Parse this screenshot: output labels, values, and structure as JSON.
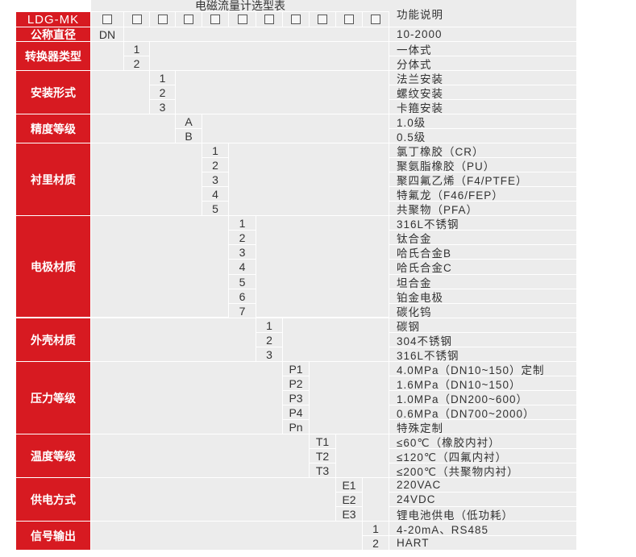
{
  "title": "电磁流量计选型表",
  "function_header": "功能说明",
  "model": "LDG-MK",
  "colors": {
    "label_bg": "#d71a21",
    "cell_bg": "#ececec",
    "grid": "#ffffff"
  },
  "placeholder_count": 11,
  "groups": [
    {
      "label": "公称直径",
      "rows": [
        {
          "code": "DN",
          "desc": "10-2000"
        }
      ]
    },
    {
      "label": "转换器类型",
      "rows": [
        {
          "code": "1",
          "desc": "一体式"
        },
        {
          "code": "2",
          "desc": "分体式"
        }
      ]
    },
    {
      "label": "安装形式",
      "rows": [
        {
          "code": "1",
          "desc": "法兰安装"
        },
        {
          "code": "2",
          "desc": "螺纹安装"
        },
        {
          "code": "3",
          "desc": "卡箍安装"
        }
      ]
    },
    {
      "label": "精度等级",
      "rows": [
        {
          "code": "A",
          "desc": "1.0级"
        },
        {
          "code": "B",
          "desc": "0.5级"
        }
      ]
    },
    {
      "label": "衬里材质",
      "rows": [
        {
          "code": "1",
          "desc": "氯丁橡胶（CR）"
        },
        {
          "code": "2",
          "desc": "聚氨脂橡胶（PU）"
        },
        {
          "code": "3",
          "desc": "聚四氟乙烯（F4/PTFE）"
        },
        {
          "code": "4",
          "desc": "特氟龙（F46/FEP）"
        },
        {
          "code": "5",
          "desc": "共聚物（PFA）"
        }
      ]
    },
    {
      "label": "电极材质",
      "rows": [
        {
          "code": "1",
          "desc": "316L不锈钢"
        },
        {
          "code": "2",
          "desc": "钛合金"
        },
        {
          "code": "3",
          "desc": "哈氏合金B"
        },
        {
          "code": "4",
          "desc": "哈氏合金C"
        },
        {
          "code": "5",
          "desc": "坦合金"
        },
        {
          "code": "6",
          "desc": "铂金电极"
        },
        {
          "code": "7",
          "desc": "碳化钨"
        }
      ]
    },
    {
      "label": "外壳材质",
      "rows": [
        {
          "code": "1",
          "desc": "碳钢"
        },
        {
          "code": "2",
          "desc": "304不锈钢"
        },
        {
          "code": "3",
          "desc": "316L不锈钢"
        }
      ]
    },
    {
      "label": "压力等级",
      "rows": [
        {
          "code": "P1",
          "desc": "4.0MPa（DN10~150）定制"
        },
        {
          "code": "P2",
          "desc": "1.6MPa（DN10~150）"
        },
        {
          "code": "P3",
          "desc": "1.0MPa（DN200~600）"
        },
        {
          "code": "P4",
          "desc": "0.6MPa（DN700~2000）"
        },
        {
          "code": "Pn",
          "desc": "特殊定制"
        }
      ]
    },
    {
      "label": "温度等级",
      "rows": [
        {
          "code": "T1",
          "desc": "≤60℃（橡胶内衬）"
        },
        {
          "code": "T2",
          "desc": "≤120℃（四氟内衬）"
        },
        {
          "code": "T3",
          "desc": "≤200℃（共聚物内衬）"
        }
      ]
    },
    {
      "label": "供电方式",
      "rows": [
        {
          "code": "E1",
          "desc": "220VAC"
        },
        {
          "code": "E2",
          "desc": "24VDC"
        },
        {
          "code": "E3",
          "desc": "锂电池供电（低功耗）"
        }
      ]
    },
    {
      "label": "信号输出",
      "rows": [
        {
          "code": "1",
          "desc": "4-20mA、RS485"
        },
        {
          "code": "2",
          "desc": "HART"
        }
      ]
    }
  ]
}
